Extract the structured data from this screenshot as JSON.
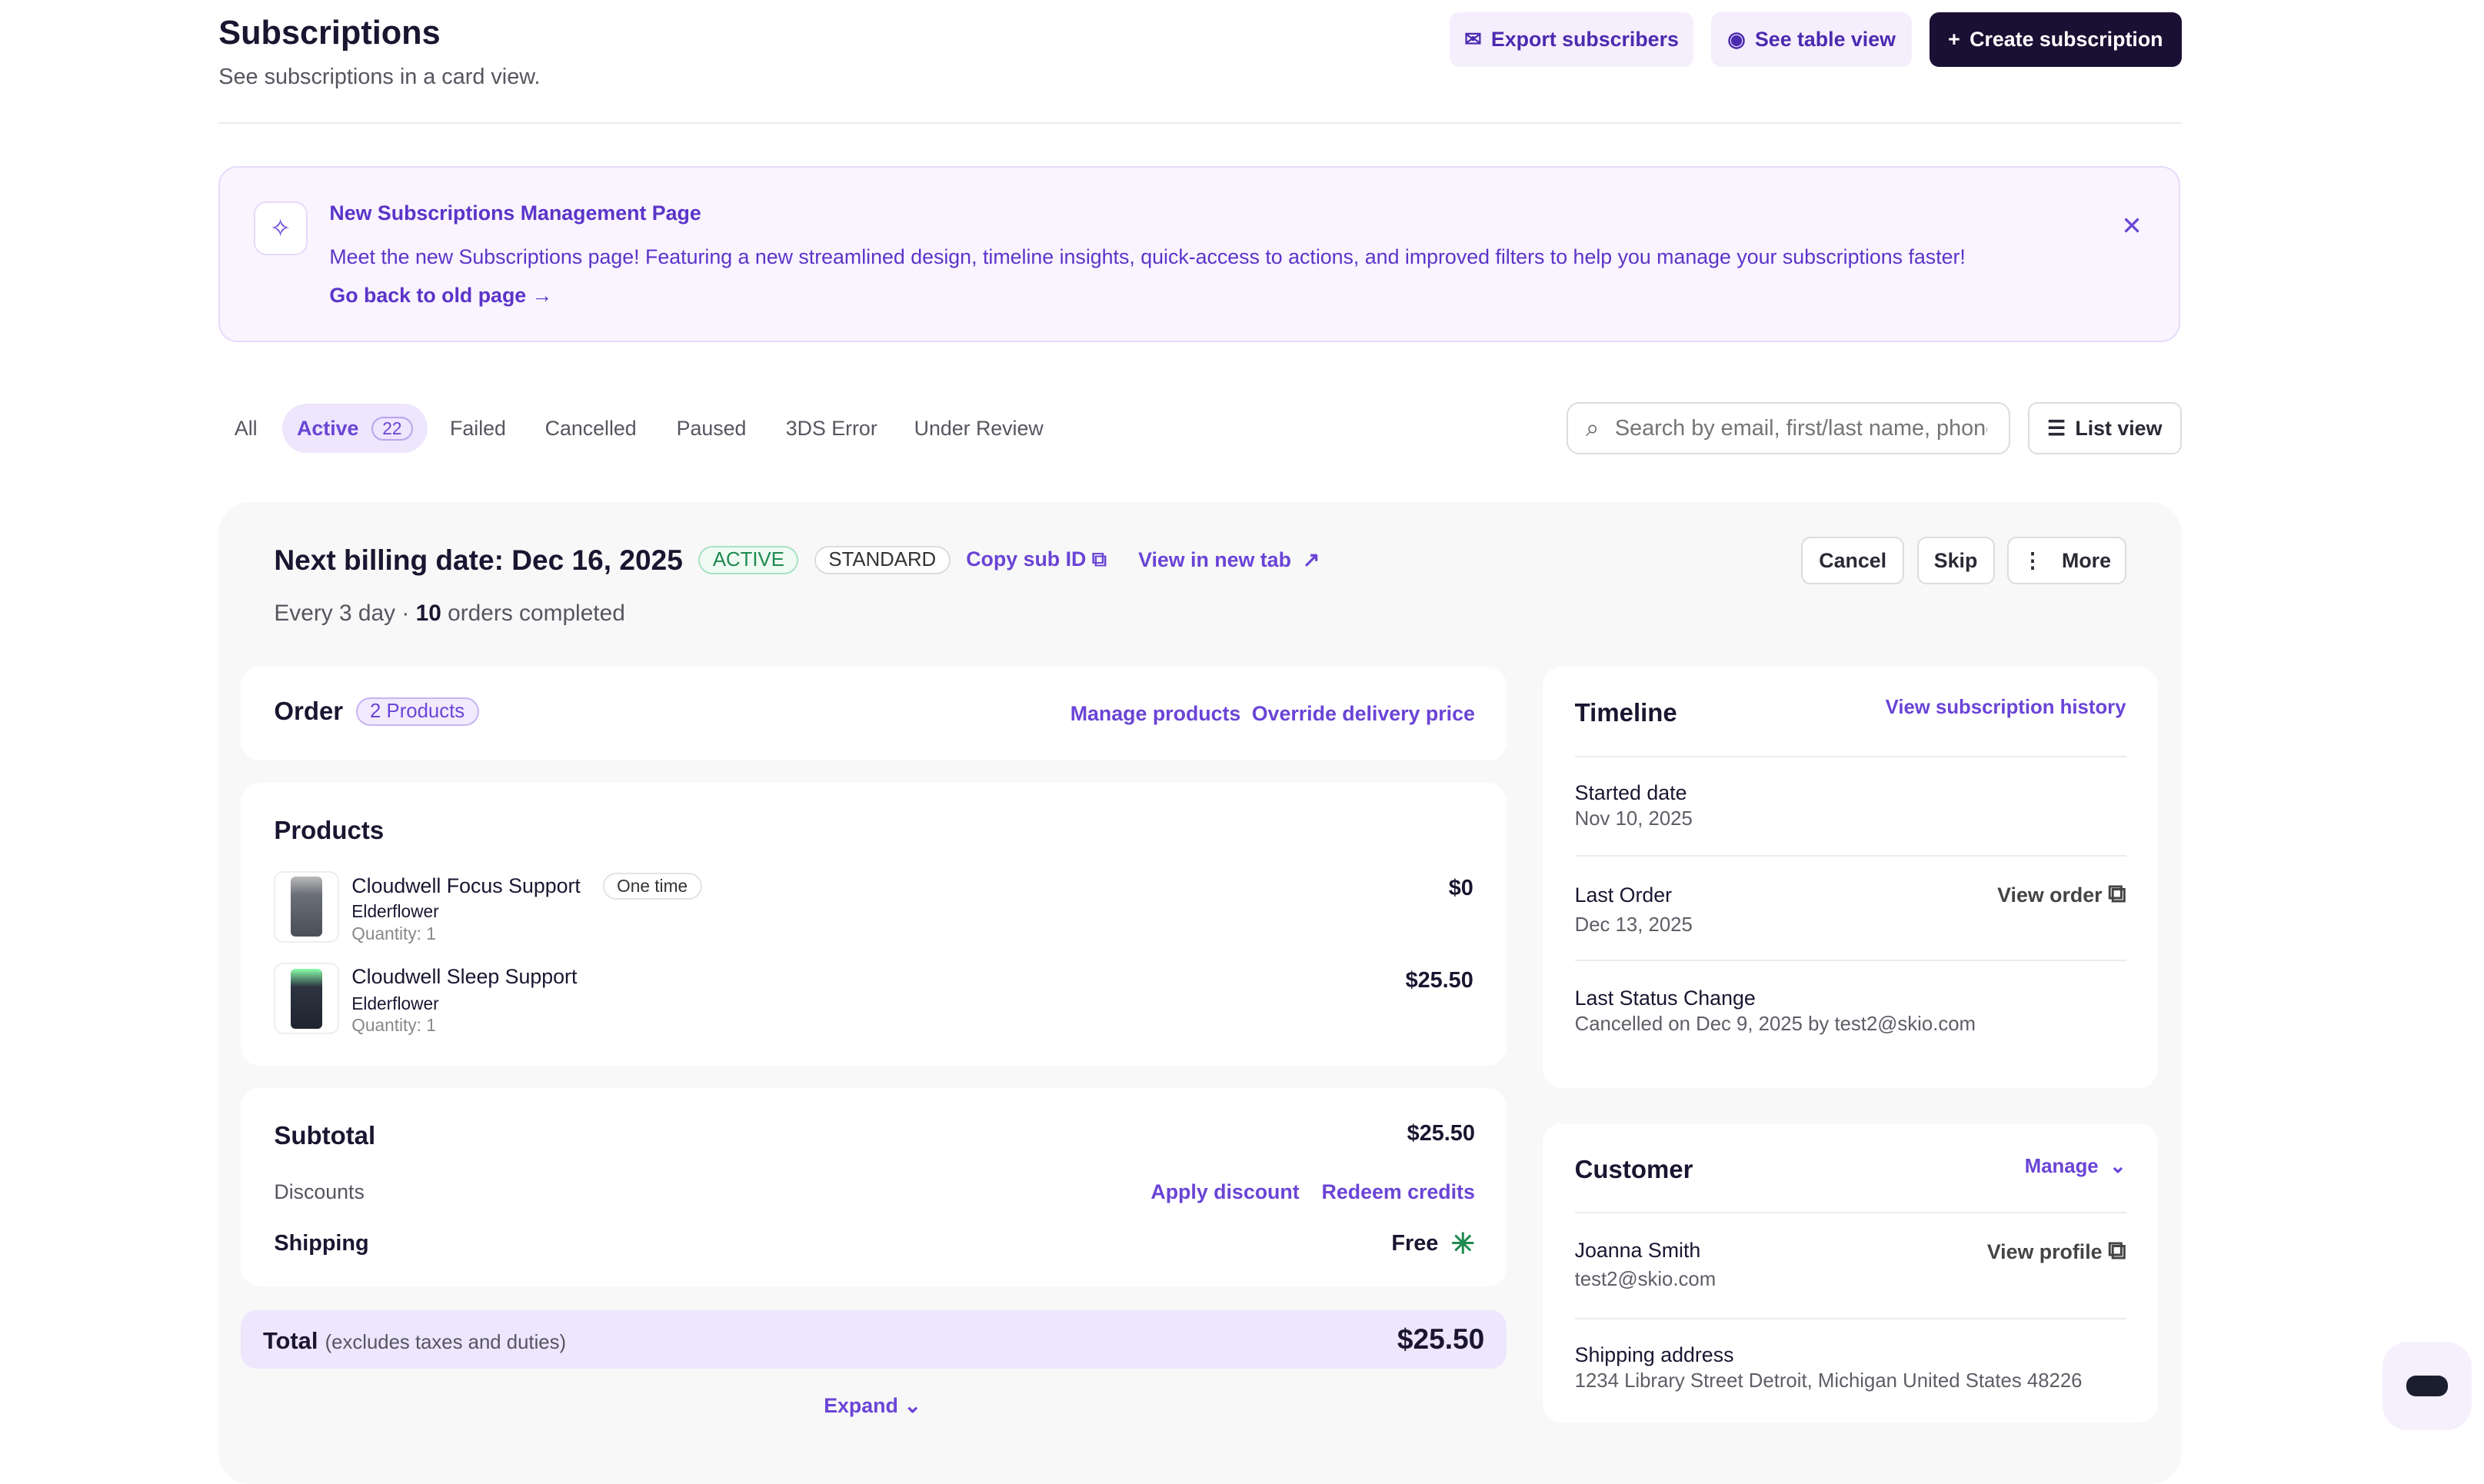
{
  "header": {
    "title": "Subscriptions",
    "subtitle": "See subscriptions in a card view.",
    "export_label": "Export subscribers",
    "table_view_label": "See table view",
    "create_label": "Create subscription"
  },
  "banner": {
    "title": "New Subscriptions Management Page",
    "text": "Meet the new Subscriptions page! Featuring a new streamlined design, timeline insights, quick-access to actions, and improved filters to help you manage your subscriptions faster!",
    "link": "Go back to old page →"
  },
  "tabs": [
    {
      "label": "All"
    },
    {
      "label": "Active",
      "count": "22"
    },
    {
      "label": "Failed"
    },
    {
      "label": "Cancelled"
    },
    {
      "label": "Paused"
    },
    {
      "label": "3DS Error"
    },
    {
      "label": "Under Review"
    }
  ],
  "search": {
    "placeholder": "Search by email, first/last name, phone"
  },
  "list_view_label": "List view",
  "subscription": {
    "next_billing": "Next billing date: Dec 16, 2025",
    "status": "ACTIVE",
    "type": "STANDARD",
    "copy_id": "Copy sub ID",
    "view_new_tab": "View in new tab",
    "frequency": "Every 3 day",
    "orders_count": "10",
    "orders_label": "orders completed",
    "actions": {
      "cancel": "Cancel",
      "skip": "Skip",
      "more": "More"
    },
    "order": {
      "title": "Order",
      "products_badge": "2 Products",
      "manage": "Manage products",
      "override": "Override delivery price"
    },
    "products": {
      "title": "Products",
      "items": [
        {
          "name": "Cloudwell Focus Support",
          "badge": "One time",
          "variant": "Elderflower",
          "quantity": "Quantity: 1",
          "price": "$0"
        },
        {
          "name": "Cloudwell Sleep Support",
          "variant": "Elderflower",
          "quantity": "Quantity: 1",
          "price": "$25.50"
        }
      ]
    },
    "subtotal": {
      "label": "Subtotal",
      "value": "$25.50",
      "discounts": "Discounts",
      "apply_discount": "Apply discount",
      "redeem_credits": "Redeem credits",
      "shipping": "Shipping",
      "shipping_value": "Free"
    },
    "total": {
      "label": "Total",
      "note": "(excludes taxes and duties)",
      "value": "$25.50"
    },
    "expand": "Expand",
    "timeline": {
      "title": "Timeline",
      "history_link": "View subscription history",
      "started_label": "Started date",
      "started": "Nov 10, 2025",
      "last_order_label": "Last Order",
      "last_order": "Dec 13, 2025",
      "view_order": "View order",
      "status_change_label": "Last Status Change",
      "status_change": "Cancelled on Dec 9, 2025 by test2@skio.com"
    },
    "customer": {
      "title": "Customer",
      "manage": "Manage",
      "name": "Joanna Smith",
      "email": "test2@skio.com",
      "view_profile": "View profile",
      "shipping_label": "Shipping address",
      "address": "1234 Library Street Detroit, Michigan United States 48226"
    }
  },
  "colors": {
    "accent": "#6a44d6",
    "dark": "#1a1033",
    "active_green": "#1e8a4f"
  }
}
